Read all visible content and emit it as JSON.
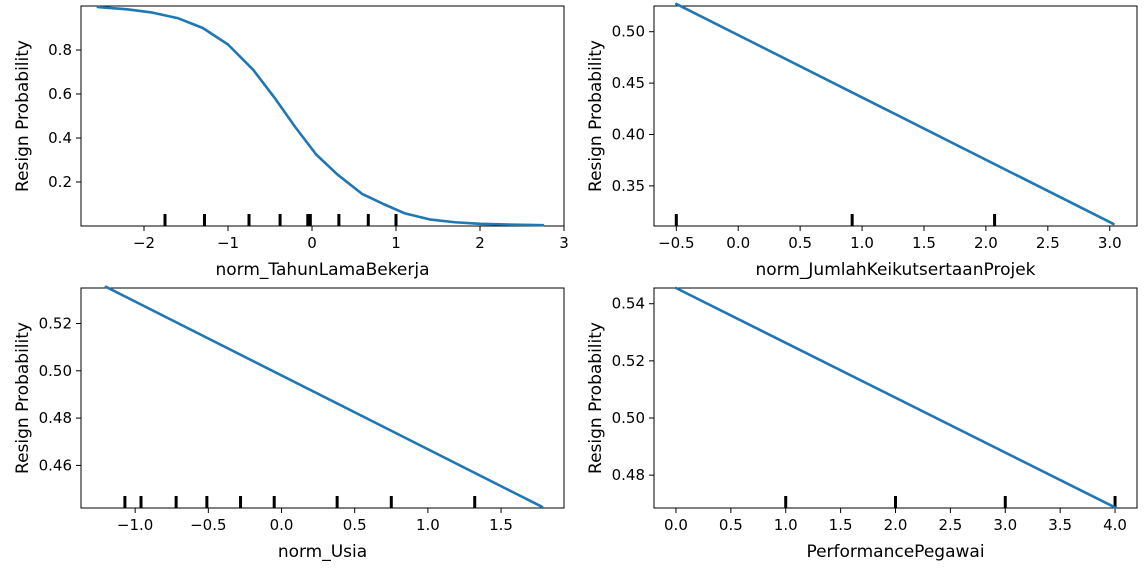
{
  "chart_data": [
    {
      "type": "line",
      "xlabel": "norm_TahunLamaBekerja",
      "ylabel": "Resign Probability",
      "xlim": [
        -2.75,
        3.0
      ],
      "ylim": [
        0.0,
        1.0
      ],
      "xticks": [
        -2,
        -1,
        0,
        1,
        2,
        3
      ],
      "xtick_labels": [
        "−2",
        "−1",
        "0",
        "1",
        "2",
        "3"
      ],
      "yticks": [
        0.2,
        0.4,
        0.6,
        0.8
      ],
      "ytick_labels": [
        "0.2",
        "0.4",
        "0.6",
        "0.8"
      ],
      "series": [
        {
          "x": [
            -2.55,
            -2.2,
            -1.9,
            -1.6,
            -1.3,
            -1.0,
            -0.7,
            -0.45,
            -0.2,
            0.05,
            0.3,
            0.6,
            0.85,
            1.1,
            1.4,
            1.7,
            2.0,
            2.4,
            2.75
          ],
          "y": [
            0.995,
            0.985,
            0.97,
            0.945,
            0.9,
            0.825,
            0.71,
            0.585,
            0.45,
            0.325,
            0.235,
            0.145,
            0.1,
            0.058,
            0.03,
            0.017,
            0.01,
            0.006,
            0.004
          ]
        }
      ],
      "rug": [
        -1.75,
        -1.28,
        -0.75,
        -0.38,
        -0.05,
        -0.02,
        0.32,
        0.67,
        1.0
      ]
    },
    {
      "type": "line",
      "xlabel": "norm_JumlahKeikutsertaanProjek",
      "ylabel": "Resign Probability",
      "xlim": [
        -0.68,
        3.22
      ],
      "ylim": [
        0.311,
        0.525
      ],
      "xticks": [
        -0.5,
        0.0,
        0.5,
        1.0,
        1.5,
        2.0,
        2.5,
        3.0
      ],
      "xtick_labels": [
        "−0.5",
        "0.0",
        "0.5",
        "1.0",
        "1.5",
        "2.0",
        "2.5",
        "3.0"
      ],
      "yticks": [
        0.35,
        0.4,
        0.45,
        0.5
      ],
      "ytick_labels": [
        "0.35",
        "0.40",
        "0.45",
        "0.50"
      ],
      "series": [
        {
          "x": [
            -0.5,
            3.03
          ],
          "y": [
            0.527,
            0.313
          ]
        }
      ],
      "rug": [
        -0.5,
        0.92,
        2.07
      ]
    },
    {
      "type": "line",
      "xlabel": "norm_Usia",
      "ylabel": "Resign Probability",
      "xlim": [
        -1.37,
        1.93
      ],
      "ylim": [
        0.442,
        0.535
      ],
      "xticks": [
        -1.0,
        -0.5,
        0.0,
        0.5,
        1.0,
        1.5
      ],
      "xtick_labels": [
        "−1.0",
        "−0.5",
        "0.0",
        "0.5",
        "1.0",
        "1.5"
      ],
      "yticks": [
        0.46,
        0.48,
        0.5,
        0.52
      ],
      "ytick_labels": [
        "0.46",
        "0.48",
        "0.50",
        "0.52"
      ],
      "series": [
        {
          "x": [
            -1.2,
            1.78
          ],
          "y": [
            0.5355,
            0.4425
          ]
        }
      ],
      "rug": [
        -1.07,
        -0.96,
        -0.72,
        -0.51,
        -0.28,
        -0.05,
        0.38,
        0.75,
        1.32
      ]
    },
    {
      "type": "line",
      "xlabel": "PerformancePegawai",
      "ylabel": "Resign Probability",
      "xlim": [
        -0.2,
        4.2
      ],
      "ylim": [
        0.4685,
        0.5455
      ],
      "xticks": [
        0.0,
        0.5,
        1.0,
        1.5,
        2.0,
        2.5,
        3.0,
        3.5,
        4.0
      ],
      "xtick_labels": [
        "0.0",
        "0.5",
        "1.0",
        "1.5",
        "2.0",
        "2.5",
        "3.0",
        "3.5",
        "4.0"
      ],
      "yticks": [
        0.48,
        0.5,
        0.52,
        0.54
      ],
      "ytick_labels": [
        "0.48",
        "0.50",
        "0.52",
        "0.54"
      ],
      "series": [
        {
          "x": [
            0.0,
            4.0
          ],
          "y": [
            0.5455,
            0.4687
          ]
        }
      ],
      "rug": [
        1.0,
        2.0,
        3.0,
        4.0
      ]
    }
  ],
  "colors": {
    "line": "#1f77b4",
    "rug": "#000000",
    "axis": "#000000"
  }
}
